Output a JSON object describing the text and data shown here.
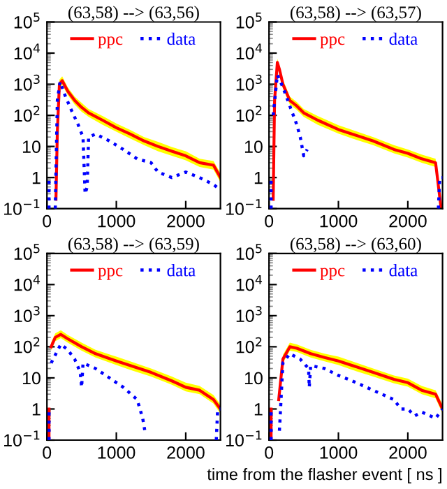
{
  "chart_data": [
    {
      "type": "line",
      "title": "(63,58) --> (63,56)",
      "log": "y",
      "xlim": [
        0,
        2500
      ],
      "ylim": [
        0.1,
        100000
      ],
      "xticks": [
        0,
        1000,
        2000
      ],
      "yticks": [
        {
          "value": 0.1,
          "label": "10$^{−1}$"
        },
        1,
        10,
        {
          "value": 100,
          "label": "10$^{2}$"
        },
        {
          "value": 1000,
          "label": "10$^{3}$"
        },
        {
          "value": 10000,
          "label": "10$^{4}$"
        },
        {
          "value": 100000,
          "label": "10$^{5}$"
        }
      ],
      "legend": "top",
      "grid": false,
      "series": [
        {
          "name": "ppc",
          "color": "#ff0000",
          "line_style": "solid",
          "x": [
            130,
            150,
            180,
            220,
            300,
            400,
            500,
            600,
            800,
            1000,
            1200,
            1400,
            1600,
            1800,
            2000,
            2200,
            2400,
            2500
          ],
          "values": [
            0.2,
            30,
            1000,
            1300,
            600,
            300,
            180,
            120,
            70,
            40,
            25,
            15,
            10,
            7,
            5,
            3,
            2.5,
            1
          ],
          "lower": [
            0.15,
            22,
            750,
            950,
            450,
            220,
            130,
            90,
            50,
            30,
            18,
            11,
            7,
            5,
            3.6,
            2.2,
            1.8,
            0.7
          ],
          "upper": [
            0.3,
            40,
            1400,
            1800,
            800,
            400,
            250,
            160,
            95,
            55,
            34,
            20,
            14,
            9.5,
            7,
            4,
            3.4,
            1.4
          ]
        },
        {
          "name": "data",
          "color": "#0000ff",
          "line_style": "dotted",
          "x": [
            30,
            30,
            40,
            120,
            150,
            190,
            250,
            350,
            450,
            520,
            550,
            580,
            600,
            700,
            900,
            1100,
            1300,
            1500,
            1600,
            1800,
            2000,
            2200,
            2400,
            2500
          ],
          "values": [
            0.1,
            1,
            null,
            0.1,
            300,
            1200,
            500,
            150,
            50,
            20,
            0.3,
            0.5,
            20,
            25,
            15,
            8,
            4,
            3,
            1.5,
            1,
            1.5,
            1,
            0.6,
            0.4
          ]
        }
      ]
    },
    {
      "type": "line",
      "title": "(63,58) --> (63,57)",
      "log": "y",
      "xlim": [
        0,
        2500
      ],
      "ylim": [
        0.1,
        100000
      ],
      "xticks": [
        0,
        1000,
        2000
      ],
      "yticks": [
        {
          "value": 0.1,
          "label": "10$^{−1}$"
        },
        1,
        10,
        {
          "value": 100,
          "label": "10$^{2}$"
        },
        {
          "value": 1000,
          "label": "10$^{3}$"
        },
        {
          "value": 10000,
          "label": "10$^{4}$"
        },
        {
          "value": 100000,
          "label": "10$^{5}$"
        }
      ],
      "legend": "top",
      "grid": false,
      "series": [
        {
          "name": "ppc",
          "color": "#ff0000",
          "line_style": "solid",
          "x": [
            60,
            80,
            120,
            150,
            200,
            300,
            400,
            500,
            700,
            1000,
            1200,
            1500,
            1800,
            2000,
            2200,
            2400,
            2480
          ],
          "values": [
            0.2,
            300,
            5000,
            3000,
            1000,
            300,
            200,
            120,
            70,
            35,
            25,
            15,
            8,
            6,
            4,
            3,
            0.1
          ],
          "lower": [
            0.15,
            220,
            3500,
            2200,
            750,
            220,
            150,
            90,
            50,
            26,
            18,
            11,
            6,
            4.4,
            3,
            2.2,
            0.1
          ],
          "upper": [
            0.3,
            400,
            6500,
            4000,
            1400,
            400,
            270,
            160,
            95,
            48,
            34,
            20,
            11,
            8,
            5.5,
            4,
            0.1
          ]
        },
        {
          "name": "data",
          "color": "#0000ff",
          "line_style": "dotted",
          "x": [
            30,
            30,
            40,
            60,
            120,
            200,
            300,
            400,
            450,
            500,
            550,
            570,
            2440,
            2460,
            2500
          ],
          "values": [
            0.1,
            1,
            null,
            100,
            2000,
            800,
            200,
            50,
            20,
            5,
            8,
            null,
            0.1,
            1,
            1
          ]
        }
      ]
    },
    {
      "type": "line",
      "title": "(63,58) --> (63,59)",
      "log": "y",
      "xlim": [
        0,
        2500
      ],
      "ylim": [
        0.1,
        100000
      ],
      "xticks": [
        0,
        1000,
        2000
      ],
      "yticks": [
        {
          "value": 0.1,
          "label": "10$^{−1}$"
        },
        1,
        10,
        {
          "value": 100,
          "label": "10$^{2}$"
        },
        {
          "value": 1000,
          "label": "10$^{3}$"
        },
        {
          "value": 10000,
          "label": "10$^{4}$"
        },
        {
          "value": 100000,
          "label": "10$^{5}$"
        }
      ],
      "legend": "top",
      "grid": false,
      "series": [
        {
          "name": "ppc",
          "color": "#ff0000",
          "line_style": "solid",
          "x": [
            30,
            30,
            40,
            60,
            120,
            200,
            300,
            500,
            700,
            1000,
            1200,
            1500,
            1800,
            2000,
            2200,
            2400,
            2500
          ],
          "values": [
            0.1,
            1,
            null,
            100,
            200,
            250,
            180,
            100,
            60,
            35,
            25,
            15,
            8,
            5,
            4,
            2,
            1
          ],
          "lower": [
            null,
            null,
            null,
            75,
            150,
            190,
            135,
            75,
            45,
            26,
            18,
            11,
            6,
            3.7,
            3,
            1.5,
            0.7
          ],
          "upper": [
            null,
            null,
            null,
            135,
            270,
            340,
            240,
            135,
            80,
            48,
            34,
            20,
            11,
            7,
            5.5,
            2.8,
            1.4
          ]
        },
        {
          "name": "data",
          "color": "#0000ff",
          "line_style": "dotted",
          "x": [
            30,
            30,
            40,
            60,
            200,
            300,
            400,
            480,
            500,
            520,
            700,
            900,
            1100,
            1300,
            1380,
            1420,
            1500,
            2440,
            2460,
            2500
          ],
          "values": [
            0.1,
            1,
            null,
            30,
            120,
            80,
            40,
            15,
            5,
            30,
            20,
            10,
            5,
            2,
            0.5,
            0.15,
            null,
            0.1,
            1,
            1
          ]
        }
      ]
    },
    {
      "type": "line",
      "title": "(63,58) --> (63,60)",
      "xlabel": "time from the flasher event [ ns ]",
      "log": "y",
      "xlim": [
        0,
        2500
      ],
      "ylim": [
        0.1,
        100000
      ],
      "xticks": [
        0,
        1000,
        2000
      ],
      "yticks": [
        {
          "value": 0.1,
          "label": "10$^{−1}$"
        },
        1,
        10,
        {
          "value": 100,
          "label": "10$^{2}$"
        },
        {
          "value": 1000,
          "label": "10$^{3}$"
        },
        {
          "value": 10000,
          "label": "10$^{4}$"
        },
        {
          "value": 100000,
          "label": "10$^{5}$"
        }
      ],
      "legend": "top",
      "grid": false,
      "series": [
        {
          "name": "ppc",
          "color": "#ff0000",
          "line_style": "solid",
          "x": [
            30,
            30,
            40,
            140,
            200,
            300,
            400,
            600,
            800,
            1000,
            1200,
            1500,
            1800,
            2000,
            2200,
            2400,
            2500
          ],
          "values": [
            0.1,
            1,
            null,
            2,
            40,
            100,
            90,
            60,
            45,
            35,
            25,
            15,
            9,
            7,
            4,
            3,
            1
          ],
          "lower": [
            null,
            null,
            null,
            1.5,
            30,
            75,
            68,
            45,
            34,
            26,
            18,
            11,
            6.7,
            5.2,
            3,
            2.2,
            0.7
          ],
          "upper": [
            null,
            null,
            null,
            2.7,
            55,
            135,
            120,
            80,
            60,
            48,
            34,
            20,
            12,
            9.5,
            5.5,
            4,
            1.4
          ]
        },
        {
          "name": "data",
          "color": "#0000ff",
          "line_style": "dotted",
          "x": [
            30,
            30,
            40,
            150,
            200,
            300,
            450,
            570,
            580,
            600,
            800,
            1000,
            1200,
            1500,
            1800,
            1900,
            2000,
            2100,
            2200,
            2400,
            2500
          ],
          "values": [
            0.1,
            1,
            null,
            0.2,
            30,
            60,
            40,
            20,
            5,
            25,
            20,
            12,
            8,
            4,
            2,
            1,
            1,
            0.6,
            0.8,
            0.5,
            1
          ]
        }
      ]
    }
  ]
}
